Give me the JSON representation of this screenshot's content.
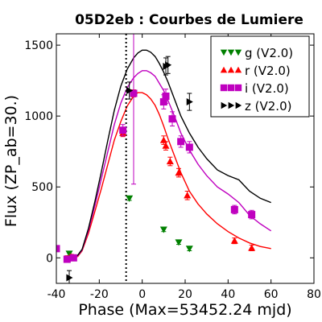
{
  "chart_data": {
    "type": "scatter",
    "title": "05D2eb : Courbes de Lumiere",
    "xlabel": "Phase (Max=53452.24 mjd)",
    "ylabel": "Flux (ZP_ab=30.)",
    "xlim": [
      -40,
      80
    ],
    "ylim": [
      -180,
      1580
    ],
    "xticks": [
      -40,
      -20,
      0,
      20,
      40,
      60,
      80
    ],
    "yticks": [
      0,
      500,
      1000,
      1500
    ],
    "xtick_labels": [
      "-40",
      "-20",
      "0",
      "20",
      "40",
      "60",
      "80"
    ],
    "ytick_labels": [
      "0",
      "500",
      "1000",
      "1500"
    ],
    "grid": false,
    "legend_position": "top-right",
    "vline_x": -7.5,
    "series": [
      {
        "name": "g (V2.0)",
        "color": "#008000",
        "marker": "triangle-down",
        "points": [
          {
            "x": -34,
            "y": 30,
            "err": 15
          },
          {
            "x": -6,
            "y": 420,
            "err": 15
          },
          {
            "x": 10,
            "y": 200,
            "err": 15
          },
          {
            "x": 17,
            "y": 110,
            "err": 15
          },
          {
            "x": 22,
            "y": 65,
            "err": 15
          }
        ]
      },
      {
        "name": "r (V2.0)",
        "color": "#ff0000",
        "marker": "triangle-up",
        "points": [
          {
            "x": -35,
            "y": -5,
            "err": 20
          },
          {
            "x": -33,
            "y": 5,
            "err": 20
          },
          {
            "x": -9,
            "y": 880,
            "err": 25
          },
          {
            "x": -4,
            "y": 1160,
            "err": 25
          },
          {
            "x": 10,
            "y": 830,
            "err": 30
          },
          {
            "x": 11,
            "y": 790,
            "err": 30
          },
          {
            "x": 13,
            "y": 680,
            "err": 30
          },
          {
            "x": 17,
            "y": 600,
            "err": 30
          },
          {
            "x": 21,
            "y": 440,
            "err": 30
          },
          {
            "x": 43,
            "y": 120,
            "err": 20
          },
          {
            "x": 51,
            "y": 70,
            "err": 20
          }
        ]
      },
      {
        "name": "i (V2.0)",
        "color": "#bf00bf",
        "marker": "square",
        "points": [
          {
            "x": -40,
            "y": 65,
            "err": 20
          },
          {
            "x": -35,
            "y": -10,
            "err": 20
          },
          {
            "x": -32,
            "y": 0,
            "err": 20
          },
          {
            "x": -9,
            "y": 900,
            "err": 40
          },
          {
            "x": -4,
            "y": 1160,
            "err": 640
          },
          {
            "x": 10,
            "y": 1100,
            "err": 50
          },
          {
            "x": 11,
            "y": 1140,
            "err": 50
          },
          {
            "x": 14,
            "y": 980,
            "err": 50
          },
          {
            "x": 18,
            "y": 820,
            "err": 40
          },
          {
            "x": 22,
            "y": 780,
            "err": 40
          },
          {
            "x": 43,
            "y": 340,
            "err": 30
          },
          {
            "x": 51,
            "y": 305,
            "err": 30
          }
        ]
      },
      {
        "name": "z (V2.0)",
        "color": "#000000",
        "marker": "triangle-right",
        "points": [
          {
            "x": -34,
            "y": -140,
            "err": 50
          },
          {
            "x": -6,
            "y": 1180,
            "err": 60
          },
          {
            "x": 11,
            "y": 1350,
            "err": 60
          },
          {
            "x": 12,
            "y": 1360,
            "err": 60
          },
          {
            "x": 22,
            "y": 1100,
            "err": 60
          }
        ]
      }
    ],
    "fit_curves": [
      {
        "color": "#ff0000",
        "x": [
          -32,
          -30,
          -28,
          -25,
          -22,
          -19,
          -16,
          -13,
          -10,
          -7,
          -4,
          -2,
          0,
          2,
          4,
          6,
          8,
          10,
          12,
          15,
          18,
          22,
          26,
          30,
          35,
          40,
          45,
          50,
          55,
          60
        ],
        "y": [
          0,
          10,
          50,
          175,
          330,
          490,
          660,
          830,
          960,
          1070,
          1140,
          1165,
          1165,
          1150,
          1120,
          1075,
          1010,
          930,
          840,
          720,
          600,
          470,
          380,
          310,
          240,
          185,
          140,
          105,
          80,
          65
        ]
      },
      {
        "color": "#bf00bf",
        "x": [
          -32,
          -30,
          -28,
          -25,
          -22,
          -19,
          -16,
          -13,
          -10,
          -7,
          -4,
          -2,
          0,
          2,
          4,
          6,
          8,
          10,
          12,
          15,
          18,
          22,
          26,
          30,
          35,
          40,
          45,
          50,
          55,
          60
        ],
        "y": [
          0,
          15,
          55,
          195,
          370,
          560,
          750,
          940,
          1090,
          1200,
          1270,
          1300,
          1320,
          1320,
          1305,
          1280,
          1230,
          1180,
          1110,
          1000,
          880,
          760,
          660,
          580,
          500,
          450,
          390,
          300,
          240,
          190
        ]
      },
      {
        "color": "#000000",
        "x": [
          -32,
          -30,
          -28,
          -25,
          -22,
          -19,
          -16,
          -13,
          -10,
          -7,
          -4,
          -2,
          0,
          2,
          4,
          6,
          8,
          10,
          12,
          15,
          18,
          22,
          26,
          30,
          35,
          40,
          45,
          50,
          55,
          60
        ],
        "y": [
          0,
          20,
          60,
          210,
          400,
          610,
          830,
          1040,
          1210,
          1330,
          1410,
          1445,
          1465,
          1465,
          1450,
          1420,
          1370,
          1310,
          1240,
          1120,
          1000,
          880,
          780,
          700,
          620,
          580,
          550,
          470,
          420,
          390
        ]
      }
    ]
  }
}
